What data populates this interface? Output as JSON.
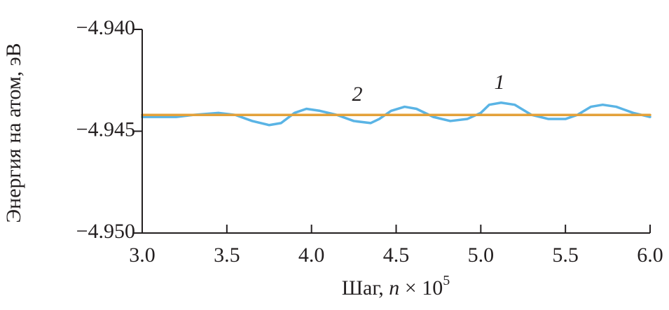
{
  "chart_data": {
    "type": "line",
    "xlabel": [
      "Шаг, ",
      "n",
      " × 10",
      "5"
    ],
    "ylabel": "Энергия на атом, эВ",
    "xlim": [
      3.0,
      6.0
    ],
    "xticks": [
      {
        "value": 3.0,
        "label": "3.0"
      },
      {
        "value": 3.5,
        "label": "3.5"
      },
      {
        "value": 4.0,
        "label": "4.0"
      },
      {
        "value": 4.5,
        "label": "4.5"
      },
      {
        "value": 5.0,
        "label": "5.0"
      },
      {
        "value": 5.5,
        "label": "5.5"
      },
      {
        "value": 6.0,
        "label": "6.0"
      }
    ],
    "ylim": [
      -4.95,
      -4.94
    ],
    "yticks": [
      {
        "value": -4.95,
        "label": "−4.950"
      },
      {
        "value": -4.945,
        "label": "−4.945"
      },
      {
        "value": -4.94,
        "label": "−4.940"
      }
    ],
    "series": [
      {
        "name": "1",
        "color": "#5ab4e5",
        "x": [
          3.0,
          3.2,
          3.3,
          3.45,
          3.55,
          3.65,
          3.75,
          3.82,
          3.9,
          3.97,
          4.05,
          4.15,
          4.25,
          4.35,
          4.4,
          4.47,
          4.55,
          4.62,
          4.72,
          4.82,
          4.92,
          5.0,
          5.05,
          5.12,
          5.2,
          5.3,
          5.4,
          5.5,
          5.57,
          5.65,
          5.72,
          5.8,
          5.9,
          6.0
        ],
        "values": [
          -4.9443,
          -4.9443,
          -4.9442,
          -4.9441,
          -4.9442,
          -4.9445,
          -4.9447,
          -4.9446,
          -4.9441,
          -4.9439,
          -4.944,
          -4.9442,
          -4.9445,
          -4.9446,
          -4.9444,
          -4.944,
          -4.9438,
          -4.9439,
          -4.9443,
          -4.9445,
          -4.9444,
          -4.9441,
          -4.9437,
          -4.9436,
          -4.9437,
          -4.9442,
          -4.9444,
          -4.9444,
          -4.9442,
          -4.9438,
          -4.9437,
          -4.9438,
          -4.9441,
          -4.9443
        ]
      },
      {
        "name": "2",
        "color": "#e3a13a",
        "x": [
          3.0,
          6.0
        ],
        "values": [
          -4.9442,
          -4.9442
        ]
      }
    ]
  }
}
